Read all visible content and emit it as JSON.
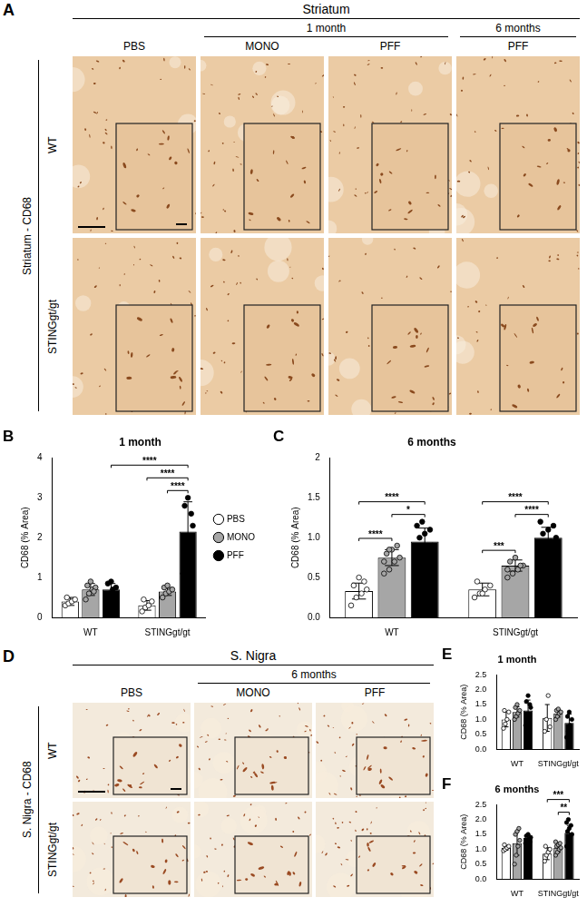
{
  "micrographs": [
    {
      "letter": "A",
      "title": "Striatum",
      "groups": [
        {
          "label": "1 month",
          "columns": [
            1,
            2
          ]
        },
        {
          "label": "6 months",
          "columns": [
            3
          ]
        }
      ],
      "columns": [
        "PBS",
        "MONO",
        "PFF",
        "PFF"
      ],
      "rows": [
        "WT",
        "STINGgt/gt"
      ],
      "side_label": "Striatum - CD68"
    },
    {
      "letter": "D",
      "title": "S. Nigra",
      "groups": [
        {
          "label": "6 months",
          "columns": [
            1,
            2
          ]
        }
      ],
      "columns": [
        "PBS",
        "MONO",
        "PFF"
      ],
      "rows": [
        "WT",
        "STINGgt/gt"
      ],
      "side_label": "S. Nigra - CD68"
    }
  ],
  "chart_data": [
    {
      "letter": "B",
      "type": "bar",
      "title": "1 month",
      "categories": [
        "WT",
        "STINGgt/gt"
      ],
      "y_label": "CD68 (% Area)",
      "ylim": [
        0,
        4
      ],
      "yticks": [
        0,
        1,
        2,
        3,
        4
      ],
      "grid": false,
      "legend": "right",
      "series": [
        {
          "name": "PBS",
          "color": "#ffffff",
          "values": [
            0.4,
            0.3
          ],
          "errors": [
            0.1,
            0.12
          ],
          "points": [
            [
              0.3,
              0.35,
              0.4,
              0.45,
              0.5
            ],
            [
              0.15,
              0.25,
              0.3,
              0.4,
              0.45
            ]
          ]
        },
        {
          "name": "MONO",
          "color": "#a6a6a6",
          "values": [
            0.7,
            0.65
          ],
          "errors": [
            0.15,
            0.1
          ],
          "points": [
            [
              0.45,
              0.6,
              0.7,
              0.75,
              0.8,
              0.9,
              0.65
            ],
            [
              0.5,
              0.6,
              0.65,
              0.7,
              0.75,
              0.8
            ]
          ]
        },
        {
          "name": "PFF",
          "color": "#000000",
          "values": [
            0.7,
            2.15
          ],
          "errors": [
            0.15,
            0.75
          ],
          "points": [
            [
              0.5,
              0.6,
              0.7,
              0.75,
              0.85,
              0.9
            ],
            [
              1.1,
              1.5,
              1.9,
              2.3,
              2.8,
              3.0,
              2.6
            ]
          ]
        }
      ],
      "annotations": [
        {
          "from": [
            "STINGgt/gt",
            "MONO"
          ],
          "to": [
            "STINGgt/gt",
            "PFF"
          ],
          "label": "****"
        },
        {
          "from": [
            "STINGgt/gt",
            "PBS"
          ],
          "to": [
            "STINGgt/gt",
            "PFF"
          ],
          "label": "****"
        },
        {
          "from": [
            "WT",
            "PFF"
          ],
          "to": [
            "STINGgt/gt",
            "PFF"
          ],
          "label": "****"
        }
      ]
    },
    {
      "letter": "C",
      "type": "bar",
      "title": "6 months",
      "categories": [
        "WT",
        "STINGgt/gt"
      ],
      "y_label": "CD68 (% Area)",
      "ylim": [
        0,
        2
      ],
      "yticks": [
        {
          "value": 0,
          "label": "0.0"
        },
        {
          "value": 0.5,
          "label": "0.5"
        },
        {
          "value": 1,
          "label": "1.0"
        },
        {
          "value": 1.5,
          "label": "1.5"
        },
        2
      ],
      "grid": false,
      "series": [
        {
          "name": "PBS",
          "color": "#ffffff",
          "values": [
            0.33,
            0.35
          ],
          "errors": [
            0.1,
            0.08
          ],
          "points": [
            [
              0.15,
              0.25,
              0.3,
              0.35,
              0.4,
              0.5,
              0.45
            ],
            [
              0.25,
              0.3,
              0.35,
              0.4,
              0.45,
              0.3
            ]
          ]
        },
        {
          "name": "MONO",
          "color": "#a6a6a6",
          "values": [
            0.75,
            0.65
          ],
          "errors": [
            0.1,
            0.07
          ],
          "points": [
            [
              0.55,
              0.6,
              0.7,
              0.75,
              0.8,
              0.85,
              0.9,
              0.7,
              0.85
            ],
            [
              0.5,
              0.55,
              0.6,
              0.65,
              0.7,
              0.75,
              0.65,
              0.6
            ]
          ]
        },
        {
          "name": "PFF",
          "color": "#000000",
          "values": [
            0.95,
            1.0
          ],
          "errors": [
            0.17,
            0.13
          ],
          "points": [
            [
              0.6,
              0.75,
              0.85,
              0.9,
              1.0,
              1.05,
              1.1,
              1.15,
              1.2
            ],
            [
              0.8,
              0.9,
              0.95,
              1.0,
              1.05,
              1.1,
              1.15,
              1.2,
              0.9
            ]
          ]
        }
      ],
      "annotations": [
        {
          "from": [
            "WT",
            "PBS"
          ],
          "to": [
            "WT",
            "MONO"
          ],
          "label": "****"
        },
        {
          "from": [
            "WT",
            "MONO"
          ],
          "to": [
            "WT",
            "PFF"
          ],
          "label": "*"
        },
        {
          "from": [
            "WT",
            "PBS"
          ],
          "to": [
            "WT",
            "PFF"
          ],
          "label": "****"
        },
        {
          "from": [
            "STINGgt/gt",
            "PBS"
          ],
          "to": [
            "STINGgt/gt",
            "MONO"
          ],
          "label": "***"
        },
        {
          "from": [
            "STINGgt/gt",
            "MONO"
          ],
          "to": [
            "STINGgt/gt",
            "PFF"
          ],
          "label": "****"
        },
        {
          "from": [
            "STINGgt/gt",
            "PBS"
          ],
          "to": [
            "STINGgt/gt",
            "PFF"
          ],
          "label": "****"
        }
      ]
    },
    {
      "letter": "E",
      "type": "bar",
      "title": "1 month",
      "categories": [
        "WT",
        "STINGgt/gt"
      ],
      "y_label": "CD68 (% Area)",
      "ylim": [
        0,
        2.5
      ],
      "yticks": [
        {
          "value": 0,
          "label": "0.0"
        },
        {
          "value": 0.5,
          "label": "0.5"
        },
        {
          "value": 1,
          "label": "1.0"
        },
        {
          "value": 1.5,
          "label": "1.5"
        },
        {
          "value": 2,
          "label": "2.0"
        },
        2.5
      ],
      "grid": false,
      "series": [
        {
          "name": "PBS",
          "color": "#ffffff",
          "values": [
            1.0,
            1.05
          ],
          "errors": [
            0.25,
            0.45
          ],
          "points": [
            [
              0.7,
              0.85,
              1.0,
              1.25,
              1.3
            ],
            [
              0.6,
              1.0,
              1.8,
              0.75
            ]
          ]
        },
        {
          "name": "MONO",
          "color": "#a6a6a6",
          "values": [
            1.25,
            1.2
          ],
          "errors": [
            0.17,
            0.12
          ],
          "points": [
            [
              1.0,
              1.1,
              1.2,
              1.3,
              1.4,
              1.5
            ],
            [
              1.0,
              1.1,
              1.2,
              1.25,
              1.3,
              1.35
            ]
          ]
        },
        {
          "name": "PFF",
          "color": "#000000",
          "values": [
            1.3,
            0.88
          ],
          "errors": [
            0.35,
            0.3
          ],
          "points": [
            [
              0.8,
              1.0,
              1.1,
              1.4,
              1.6,
              1.8,
              1.5
            ],
            [
              0.4,
              0.6,
              0.8,
              1.0,
              1.1,
              1.25
            ]
          ]
        }
      ],
      "annotations": []
    },
    {
      "letter": "F",
      "type": "bar",
      "title": "6 months",
      "categories": [
        "WT",
        "STINGgt/gt"
      ],
      "y_label": "CD68 (% Area)",
      "ylim": [
        0,
        2.5
      ],
      "yticks": [
        {
          "value": 0,
          "label": "0.0"
        },
        {
          "value": 0.5,
          "label": "0.5"
        },
        {
          "value": 1,
          "label": "1.0"
        },
        {
          "value": 1.5,
          "label": "1.5"
        },
        {
          "value": 2,
          "label": "2.0"
        },
        2.5
      ],
      "grid": false,
      "series": [
        {
          "name": "PBS",
          "color": "#ffffff",
          "values": [
            1.05,
            0.85
          ],
          "errors": [
            0.08,
            0.2
          ],
          "points": [
            [
              0.95,
              1.0,
              1.05,
              1.1,
              1.15
            ],
            [
              0.6,
              0.8,
              0.9,
              1.0,
              1.1
            ]
          ]
        },
        {
          "name": "MONO",
          "color": "#a6a6a6",
          "values": [
            1.2,
            1.05
          ],
          "errors": [
            0.4,
            0.15
          ],
          "points": [
            [
              0.5,
              0.8,
              1.1,
              1.3,
              1.5,
              1.6,
              1.7
            ],
            [
              0.8,
              0.9,
              1.0,
              1.05,
              1.1,
              1.15,
              1.2,
              1.25
            ]
          ]
        },
        {
          "name": "PFF",
          "color": "#000000",
          "values": [
            1.38,
            1.55
          ],
          "errors": [
            0.1,
            0.25
          ],
          "points": [
            [
              1.2,
              1.3,
              1.35,
              1.4,
              1.45,
              1.5,
              1.25
            ],
            [
              1.1,
              1.3,
              1.4,
              1.5,
              1.6,
              1.7,
              1.8,
              1.9,
              2.0
            ]
          ]
        }
      ],
      "annotations": [
        {
          "from": [
            "STINGgt/gt",
            "MONO"
          ],
          "to": [
            "STINGgt/gt",
            "PFF"
          ],
          "label": "**"
        },
        {
          "from": [
            "STINGgt/gt",
            "PBS"
          ],
          "to": [
            "STINGgt/gt",
            "PFF"
          ],
          "label": "***"
        }
      ]
    }
  ]
}
